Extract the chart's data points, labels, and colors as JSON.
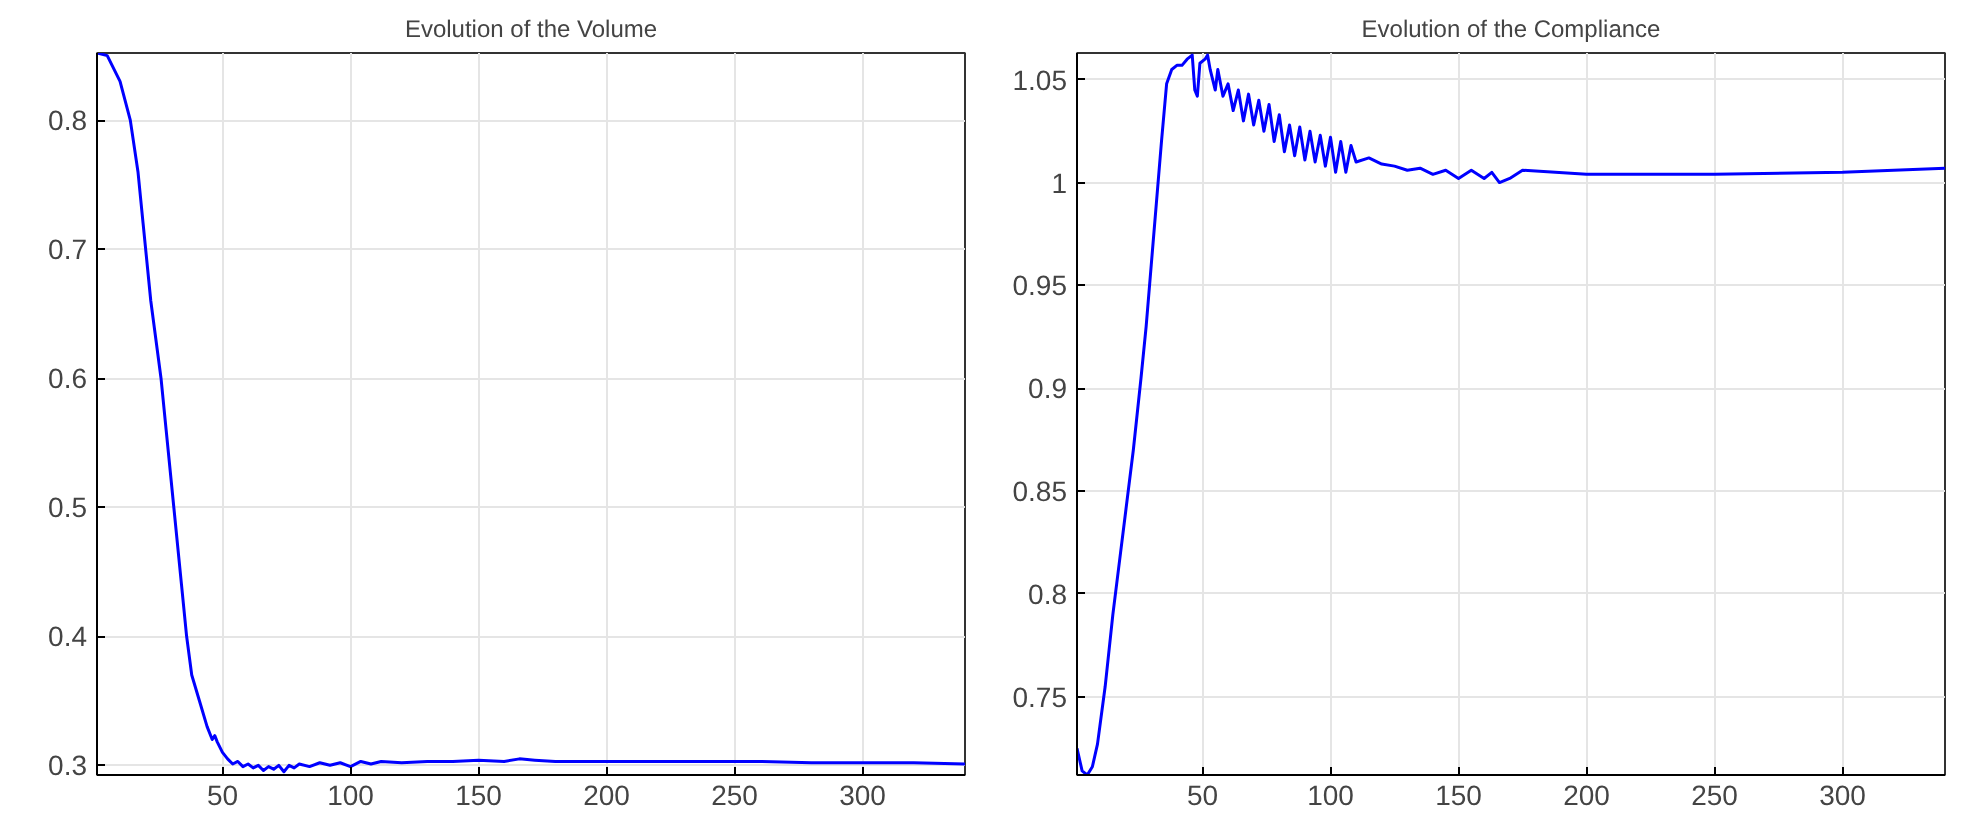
{
  "chart_data": [
    {
      "type": "line",
      "title": "Evolution of the Volume",
      "xlim": [
        1,
        340
      ],
      "ylim": [
        0.2925,
        0.852
      ],
      "xticks": [
        50,
        100,
        150,
        200,
        250,
        300
      ],
      "yticks": [
        0.3,
        0.4,
        0.5,
        0.6,
        0.7,
        0.8
      ],
      "grid": true,
      "line_style": "solid",
      "series": [
        {
          "color": "#0000ff",
          "x": [
            1,
            5,
            10,
            14,
            17,
            19,
            22,
            26,
            28,
            31,
            34,
            36,
            38,
            41,
            44,
            46,
            47,
            48,
            50,
            52,
            54,
            56,
            58,
            60,
            62,
            64,
            66,
            68,
            70,
            72,
            74,
            76,
            78,
            80,
            84,
            88,
            92,
            96,
            100,
            104,
            108,
            112,
            120,
            130,
            140,
            150,
            160,
            166,
            172,
            180,
            200,
            220,
            240,
            260,
            280,
            300,
            320,
            340
          ],
          "values": [
            0.852,
            0.85,
            0.83,
            0.8,
            0.76,
            0.72,
            0.66,
            0.6,
            0.56,
            0.5,
            0.44,
            0.4,
            0.37,
            0.35,
            0.33,
            0.32,
            0.323,
            0.318,
            0.31,
            0.305,
            0.301,
            0.303,
            0.299,
            0.301,
            0.298,
            0.3,
            0.296,
            0.299,
            0.297,
            0.3,
            0.295,
            0.3,
            0.298,
            0.301,
            0.299,
            0.302,
            0.3,
            0.302,
            0.299,
            0.303,
            0.301,
            0.303,
            0.302,
            0.303,
            0.303,
            0.304,
            0.303,
            0.305,
            0.304,
            0.303,
            0.303,
            0.303,
            0.303,
            0.303,
            0.302,
            0.302,
            0.302,
            0.301
          ]
        }
      ]
    },
    {
      "type": "line",
      "title": "Evolution of the Compliance",
      "xlim": [
        1,
        340
      ],
      "ylim": [
        0.712,
        1.063
      ],
      "xticks": [
        50,
        100,
        150,
        200,
        250,
        300
      ],
      "yticks": [
        0.75,
        0.8,
        0.85,
        0.9,
        0.95,
        1,
        1.05
      ],
      "grid": true,
      "line_style": "solid",
      "series": [
        {
          "color": "#0000ff",
          "x": [
            1,
            3,
            5,
            7,
            9,
            12,
            15,
            18,
            20,
            23,
            26,
            28,
            30,
            32,
            34,
            36,
            38,
            40,
            42,
            44,
            46,
            47,
            48,
            49,
            51,
            52,
            53,
            55,
            56,
            58,
            60,
            62,
            64,
            66,
            68,
            70,
            72,
            74,
            76,
            78,
            80,
            82,
            84,
            86,
            88,
            90,
            92,
            94,
            96,
            98,
            100,
            102,
            104,
            106,
            108,
            110,
            115,
            120,
            125,
            130,
            135,
            140,
            145,
            150,
            155,
            160,
            163,
            166,
            170,
            175,
            200,
            250,
            300,
            340
          ],
          "values": [
            0.725,
            0.714,
            0.712,
            0.716,
            0.727,
            0.755,
            0.79,
            0.82,
            0.84,
            0.87,
            0.905,
            0.93,
            0.96,
            0.99,
            1.02,
            1.048,
            1.055,
            1.057,
            1.057,
            1.06,
            1.062,
            1.045,
            1.042,
            1.058,
            1.06,
            1.062,
            1.055,
            1.045,
            1.055,
            1.042,
            1.048,
            1.035,
            1.045,
            1.03,
            1.043,
            1.028,
            1.04,
            1.025,
            1.038,
            1.02,
            1.033,
            1.015,
            1.028,
            1.013,
            1.027,
            1.011,
            1.025,
            1.01,
            1.023,
            1.008,
            1.022,
            1.005,
            1.02,
            1.005,
            1.018,
            1.01,
            1.012,
            1.009,
            1.008,
            1.006,
            1.007,
            1.004,
            1.006,
            1.002,
            1.006,
            1.002,
            1.005,
            1.0,
            1.002,
            1.006,
            1.004,
            1.004,
            1.005,
            1.007
          ]
        }
      ]
    }
  ]
}
